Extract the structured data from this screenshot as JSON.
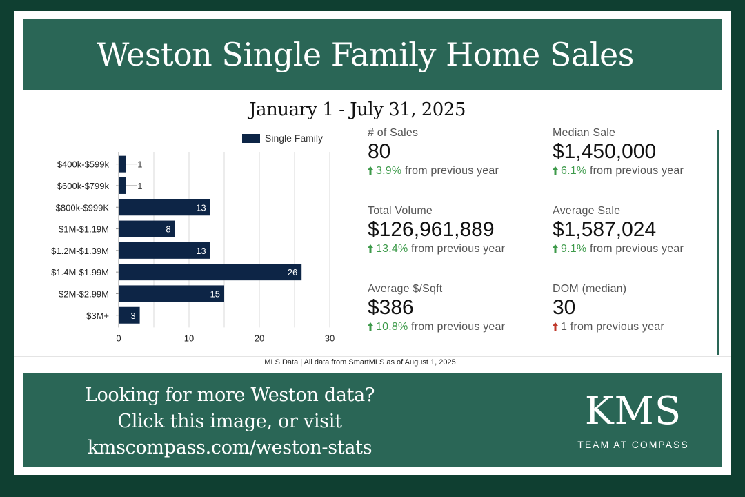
{
  "header": {
    "title": "Weston Single Family Home Sales",
    "subtitle": "January 1 - July 31, 2025"
  },
  "chart_data": {
    "type": "bar",
    "orientation": "horizontal",
    "categories": [
      "$400k-$599k",
      "$600k-$799k",
      "$800k-$999K",
      "$1M-$1.19M",
      "$1.2M-$1.39M",
      "$1.4M-$1.99M",
      "$2M-$2.99M",
      "$3M+"
    ],
    "series": [
      {
        "name": "Single Family",
        "values": [
          1,
          1,
          13,
          8,
          13,
          26,
          15,
          3
        ]
      }
    ],
    "xticks": [
      "0",
      "10",
      "20",
      "30"
    ],
    "xlim": [
      0,
      30
    ],
    "grid": true,
    "legend": "top",
    "colors": {
      "bar": "#0d2546",
      "grid": "#d9d9d9"
    }
  },
  "stats": [
    {
      "label": "# of Sales",
      "value": "80",
      "pct": "3.9%",
      "suffix": "from previous year",
      "direction": "up"
    },
    {
      "label": "Median Sale",
      "value": "$1,450,000",
      "pct": "6.1%",
      "suffix": "from previous year",
      "direction": "up"
    },
    {
      "label": "Total Volume",
      "value": "$126,961,889",
      "pct": "13.4%",
      "suffix": "from previous year",
      "direction": "up"
    },
    {
      "label": "Average Sale",
      "value": "$1,587,024",
      "pct": "9.1%",
      "suffix": "from previous year",
      "direction": "up"
    },
    {
      "label": "Average $/Sqft",
      "value": "$386",
      "pct": "10.8%",
      "suffix": "from previous year",
      "direction": "up"
    },
    {
      "label": "DOM (median)",
      "value": "30",
      "pct": "1",
      "suffix": "from previous year",
      "direction": "up-red"
    }
  ],
  "footnote": "MLS Data | All data from SmartMLS as of August 1, 2025",
  "cta": {
    "line1": "Looking for more Weston data?",
    "line2": "Click this image, or visit",
    "line3": "kmscompass.com/weston-stats"
  },
  "logo": {
    "mark": "KMS",
    "tagline": "TEAM AT COMPASS"
  },
  "colors": {
    "background": "#0f3f31",
    "banner": "#2a6656",
    "up": "#3d9a4a",
    "down": "#c0392b"
  }
}
